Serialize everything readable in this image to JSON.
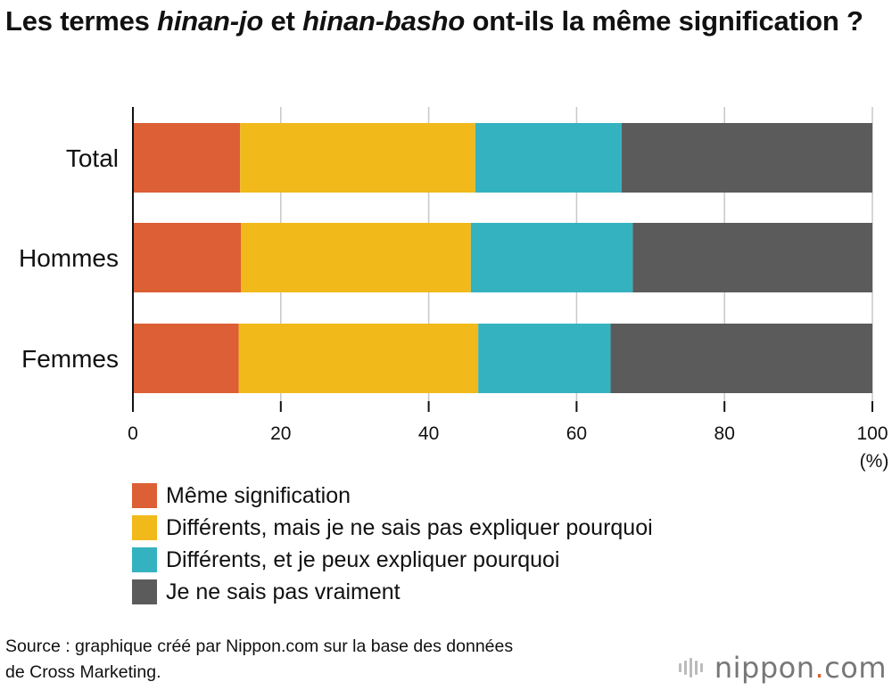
{
  "title": {
    "part1": "Les termes ",
    "italic1": "hinan-jo",
    "part2": " et ",
    "italic2": "hinan-basho",
    "part3": " ont-ils la même signification ?"
  },
  "chart_data": {
    "type": "bar",
    "orientation": "horizontal",
    "stacked": true,
    "categories": [
      "Total",
      "Hommes",
      "Femmes"
    ],
    "series": [
      {
        "name": "Même signification",
        "color": "#dc5f35",
        "values": [
          14.5,
          14.6,
          14.3
        ]
      },
      {
        "name": "Différents, mais je ne sais pas expliquer pourquoi",
        "color": "#f1b91a",
        "values": [
          31.8,
          31.1,
          32.4
        ]
      },
      {
        "name": "Différents, et je peux expliquer pourquoi",
        "color": "#35b2c0",
        "values": [
          19.8,
          21.9,
          17.9
        ]
      },
      {
        "name": "Je ne sais pas vraiment",
        "color": "#5b5b5b",
        "values": [
          33.9,
          32.4,
          35.4
        ]
      }
    ],
    "xlim": [
      0,
      100
    ],
    "xticks": [
      0,
      20,
      40,
      60,
      80,
      100
    ],
    "xunit": "(%)",
    "grid": true,
    "legend_position": "bottom"
  },
  "source": {
    "line1": "Source : graphique créé par Nippon.com sur la base des données",
    "line2": "de Cross Marketing."
  },
  "logo": {
    "text": "nippon",
    "dot": ".",
    "suffix": "com"
  }
}
